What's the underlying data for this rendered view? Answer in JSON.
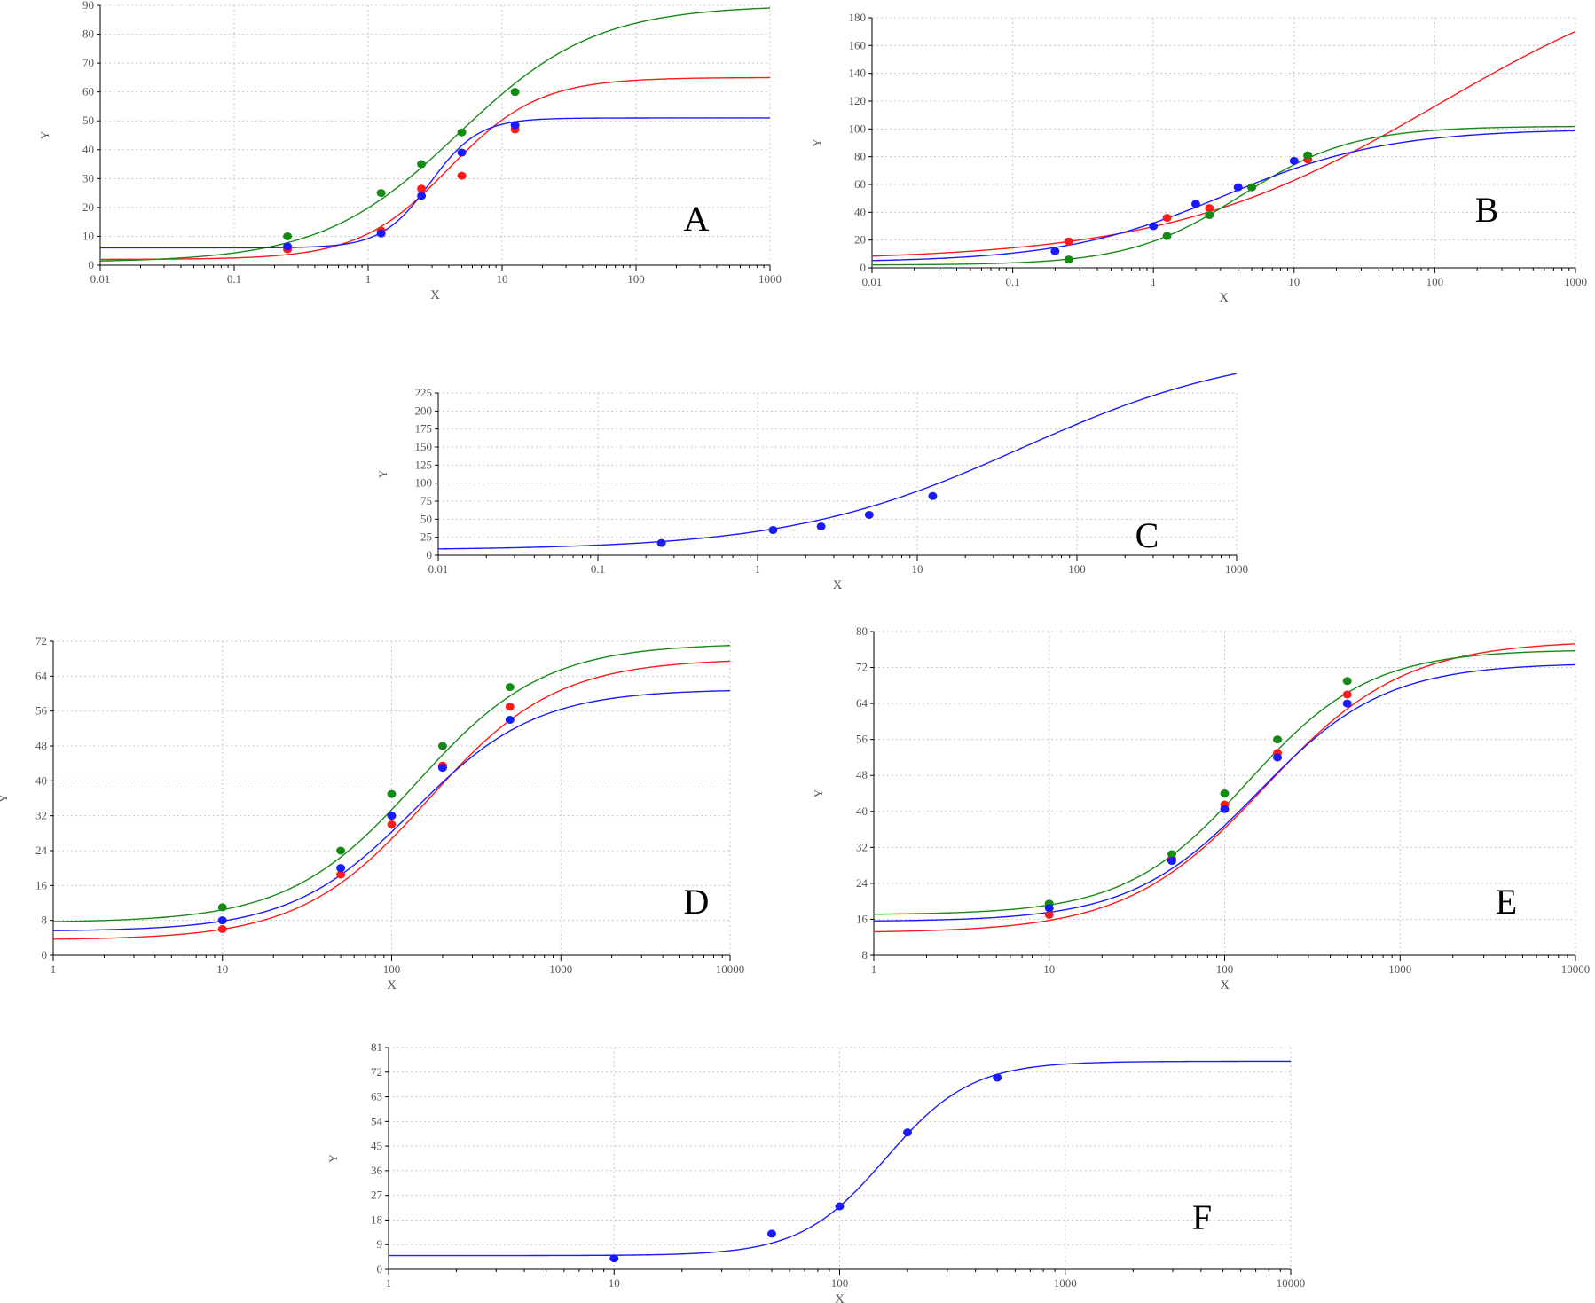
{
  "colors": {
    "red": "#ff1a1a",
    "green": "#168a16",
    "blue": "#1a1aff",
    "grid": "#c8c8c8",
    "axis": "#000000",
    "tick_text": "#555555"
  },
  "chart_data": [
    {
      "id": "A",
      "panel_label": "A",
      "type": "scatter",
      "x_scale": "log",
      "xlabel": "X",
      "ylabel": "Y",
      "grid": true,
      "xlim": [
        0.01,
        1000
      ],
      "ylim": [
        0,
        90
      ],
      "xticks": [
        0.01,
        0.1,
        1,
        10,
        100,
        1000
      ],
      "xtick_labels": [
        "0.01",
        "0.1",
        "1",
        "10",
        "100",
        "1000"
      ],
      "yticks": [
        0,
        10,
        20,
        30,
        40,
        50,
        60,
        70,
        80,
        90
      ],
      "ytick_labels": [
        "0",
        "10",
        "20",
        "30",
        "40",
        "50",
        "60",
        "70",
        "80",
        "90"
      ],
      "series": [
        {
          "color": "red",
          "points": [
            {
              "x": 0.25,
              "y": 5.5
            },
            {
              "x": 1.25,
              "y": 12
            },
            {
              "x": 2.5,
              "y": 26.5
            },
            {
              "x": 5,
              "y": 31
            },
            {
              "x": 12.5,
              "y": 47
            }
          ],
          "curve": {
            "bottom": 2,
            "top": 65,
            "ec50": 4,
            "hill": 1.3
          }
        },
        {
          "color": "green",
          "points": [
            {
              "x": 0.25,
              "y": 10
            },
            {
              "x": 1.25,
              "y": 25
            },
            {
              "x": 2.5,
              "y": 35
            },
            {
              "x": 5,
              "y": 46
            },
            {
              "x": 12.5,
              "y": 60
            }
          ],
          "curve": {
            "bottom": 1,
            "top": 90,
            "ec50": 4.7,
            "hill": 0.85
          }
        },
        {
          "color": "blue",
          "points": [
            {
              "x": 0.25,
              "y": 6.5
            },
            {
              "x": 1.25,
              "y": 11
            },
            {
              "x": 2.5,
              "y": 24
            },
            {
              "x": 5,
              "y": 39
            },
            {
              "x": 12.5,
              "y": 48.5
            }
          ],
          "curve": {
            "bottom": 6,
            "top": 51,
            "ec50": 2.9,
            "hill": 2.4
          }
        }
      ]
    },
    {
      "id": "B",
      "panel_label": "B",
      "type": "scatter",
      "x_scale": "log",
      "xlabel": "X",
      "ylabel": "Y",
      "grid": true,
      "xlim": [
        0.01,
        1000
      ],
      "ylim": [
        0,
        180
      ],
      "xticks": [
        0.01,
        0.1,
        1,
        10,
        100,
        1000
      ],
      "xtick_labels": [
        "0.01",
        "0.1",
        "1",
        "10",
        "100",
        "1000"
      ],
      "yticks": [
        0,
        20,
        40,
        60,
        80,
        100,
        120,
        140,
        160,
        180
      ],
      "ytick_labels": [
        "0",
        "20",
        "40",
        "60",
        "80",
        "100",
        "120",
        "140",
        "160",
        "180"
      ],
      "series": [
        {
          "color": "red",
          "points": [
            {
              "x": 0.25,
              "y": 19
            },
            {
              "x": 1.25,
              "y": 36
            },
            {
              "x": 2.5,
              "y": 43
            },
            {
              "x": 5,
              "y": 58
            },
            {
              "x": 12.5,
              "y": 78
            }
          ],
          "curve": {
            "bottom": 5,
            "top": 230,
            "ec50": 105,
            "hill": 0.45
          }
        },
        {
          "color": "green",
          "points": [
            {
              "x": 0.25,
              "y": 6
            },
            {
              "x": 1.25,
              "y": 23
            },
            {
              "x": 2.5,
              "y": 38
            },
            {
              "x": 5,
              "y": 58
            },
            {
              "x": 12.5,
              "y": 81
            }
          ],
          "curve": {
            "bottom": 2,
            "top": 102,
            "ec50": 4.2,
            "hill": 1.1
          }
        },
        {
          "color": "blue",
          "points": [
            {
              "x": 0.2,
              "y": 12
            },
            {
              "x": 1,
              "y": 30
            },
            {
              "x": 2,
              "y": 46
            },
            {
              "x": 4,
              "y": 58
            },
            {
              "x": 10,
              "y": 77
            }
          ],
          "curve": {
            "bottom": 4,
            "top": 100,
            "ec50": 3.2,
            "hill": 0.75
          }
        }
      ]
    },
    {
      "id": "C",
      "panel_label": "C",
      "type": "scatter",
      "x_scale": "log",
      "xlabel": "X",
      "ylabel": "Y",
      "grid": true,
      "xlim": [
        0.01,
        1000
      ],
      "ylim": [
        0,
        225
      ],
      "xticks": [
        0.01,
        0.1,
        1,
        10,
        100,
        1000
      ],
      "xtick_labels": [
        "0.01",
        "0.1",
        "1",
        "10",
        "100",
        "1000"
      ],
      "yticks": [
        0,
        25,
        50,
        75,
        100,
        125,
        150,
        175,
        200,
        225
      ],
      "ytick_labels": [
        "0",
        "25",
        "50",
        "75",
        "100",
        "125",
        "150",
        "175",
        "200",
        "225"
      ],
      "series": [
        {
          "color": "blue",
          "points": [
            {
              "x": 0.25,
              "y": 17
            },
            {
              "x": 1.25,
              "y": 35
            },
            {
              "x": 2.5,
              "y": 40
            },
            {
              "x": 5,
              "y": 56
            },
            {
              "x": 12.5,
              "y": 82
            }
          ],
          "curve": {
            "bottom": 7,
            "top": 290,
            "ec50": 45,
            "hill": 0.6
          }
        }
      ]
    },
    {
      "id": "D",
      "panel_label": "D",
      "type": "scatter",
      "x_scale": "log",
      "xlabel": "X",
      "ylabel": "Y",
      "grid": true,
      "xlim": [
        1,
        10000
      ],
      "ylim": [
        0,
        72
      ],
      "xticks": [
        1,
        10,
        100,
        1000,
        10000
      ],
      "xtick_labels": [
        "1",
        "10",
        "100",
        "1000",
        "10000"
      ],
      "yticks": [
        0,
        8,
        16,
        24,
        32,
        40,
        48,
        56,
        64,
        72
      ],
      "ytick_labels": [
        "0",
        "8",
        "16",
        "24",
        "32",
        "40",
        "48",
        "56",
        "64",
        "72"
      ],
      "series": [
        {
          "color": "red",
          "points": [
            {
              "x": 10,
              "y": 6
            },
            {
              "x": 50,
              "y": 18.5
            },
            {
              "x": 100,
              "y": 30
            },
            {
              "x": 200,
              "y": 43.5
            },
            {
              "x": 500,
              "y": 57
            }
          ],
          "curve": {
            "bottom": 3.5,
            "top": 68,
            "ec50": 165,
            "hill": 1.15
          }
        },
        {
          "color": "green",
          "points": [
            {
              "x": 10,
              "y": 11
            },
            {
              "x": 50,
              "y": 24
            },
            {
              "x": 100,
              "y": 37
            },
            {
              "x": 200,
              "y": 48
            },
            {
              "x": 500,
              "y": 61.5
            }
          ],
          "curve": {
            "bottom": 7.5,
            "top": 71.5,
            "ec50": 140,
            "hill": 1.15
          }
        },
        {
          "color": "blue",
          "points": [
            {
              "x": 10,
              "y": 8
            },
            {
              "x": 50,
              "y": 20
            },
            {
              "x": 100,
              "y": 32
            },
            {
              "x": 200,
              "y": 43
            },
            {
              "x": 500,
              "y": 54
            }
          ],
          "curve": {
            "bottom": 5.5,
            "top": 61,
            "ec50": 135,
            "hill": 1.2
          }
        }
      ]
    },
    {
      "id": "E",
      "panel_label": "E",
      "type": "scatter",
      "x_scale": "log",
      "xlabel": "X",
      "ylabel": "Y",
      "grid": true,
      "xlim": [
        1,
        10000
      ],
      "ylim": [
        8,
        80
      ],
      "xticks": [
        1,
        10,
        100,
        1000,
        10000
      ],
      "xtick_labels": [
        "1",
        "10",
        "100",
        "1000",
        "10000"
      ],
      "yticks": [
        8,
        16,
        24,
        32,
        40,
        48,
        56,
        64,
        72,
        80
      ],
      "ytick_labels": [
        "8",
        "16",
        "24",
        "32",
        "40",
        "48",
        "56",
        "64",
        "72",
        "80"
      ],
      "series": [
        {
          "color": "red",
          "points": [
            {
              "x": 10,
              "y": 17
            },
            {
              "x": 50,
              "y": 29.5
            },
            {
              "x": 100,
              "y": 41.5
            },
            {
              "x": 200,
              "y": 53
            },
            {
              "x": 500,
              "y": 66
            }
          ],
          "curve": {
            "bottom": 13,
            "top": 78,
            "ec50": 170,
            "hill": 1.1
          }
        },
        {
          "color": "green",
          "points": [
            {
              "x": 10,
              "y": 19.5
            },
            {
              "x": 50,
              "y": 30.5
            },
            {
              "x": 100,
              "y": 44
            },
            {
              "x": 200,
              "y": 56
            },
            {
              "x": 500,
              "y": 69
            }
          ],
          "curve": {
            "bottom": 17,
            "top": 76,
            "ec50": 135,
            "hill": 1.25
          }
        },
        {
          "color": "blue",
          "points": [
            {
              "x": 10,
              "y": 18.5
            },
            {
              "x": 50,
              "y": 29
            },
            {
              "x": 100,
              "y": 40.5
            },
            {
              "x": 200,
              "y": 52
            },
            {
              "x": 500,
              "y": 64
            }
          ],
          "curve": {
            "bottom": 15.5,
            "top": 73,
            "ec50": 155,
            "hill": 1.2
          }
        }
      ]
    },
    {
      "id": "F",
      "panel_label": "F",
      "type": "scatter",
      "x_scale": "log",
      "xlabel": "X",
      "ylabel": "Y",
      "grid": true,
      "xlim": [
        1,
        10000
      ],
      "ylim": [
        0,
        81
      ],
      "xticks": [
        1,
        10,
        100,
        1000,
        10000
      ],
      "xtick_labels": [
        "1",
        "10",
        "100",
        "1000",
        "10000"
      ],
      "yticks": [
        0,
        9,
        18,
        27,
        36,
        45,
        54,
        63,
        72,
        81
      ],
      "ytick_labels": [
        "0",
        "9",
        "18",
        "27",
        "36",
        "45",
        "54",
        "63",
        "72",
        "81"
      ],
      "series": [
        {
          "color": "blue",
          "points": [
            {
              "x": 10,
              "y": 4
            },
            {
              "x": 50,
              "y": 13
            },
            {
              "x": 100,
              "y": 23
            },
            {
              "x": 200,
              "y": 50
            },
            {
              "x": 500,
              "y": 70
            }
          ],
          "curve": {
            "bottom": 5,
            "top": 76,
            "ec50": 160,
            "hill": 2.3
          }
        }
      ]
    }
  ]
}
